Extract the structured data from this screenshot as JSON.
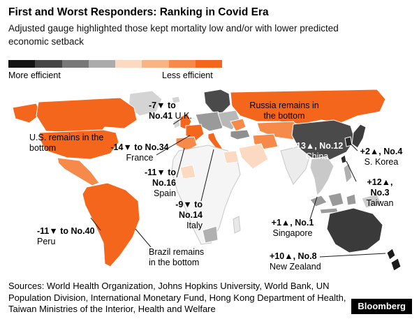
{
  "header": {
    "title": "First and Worst Responders: Ranking in Covid Era",
    "subtitle": "Adjusted gauge highlighted those kept mortality low and/or with lower predicted economic setback"
  },
  "legend": {
    "more_label": "More efficient",
    "less_label": "Less efficient",
    "colors": [
      "#141414",
      "#454545",
      "#787878",
      "#ababab",
      "#fcd9c1",
      "#f9b486",
      "#f68a4b",
      "#f3661c"
    ]
  },
  "annotations": {
    "uk": {
      "value": "-7▼ to No.41",
      "label": "U.K."
    },
    "russia": {
      "label": "Russia remains in the bottom"
    },
    "us": {
      "label": "U.S. remains in the bottom"
    },
    "france": {
      "value": "-14▼ to No.34",
      "label": "France"
    },
    "china": {
      "value": "+13▲, No.12",
      "label": "China"
    },
    "skorea": {
      "value": "+2▲, No.4",
      "label": "S. Korea"
    },
    "spain": {
      "value": "-11▼ to No.16",
      "label": "Spain"
    },
    "taiwan": {
      "value": "+12▲, No.3",
      "label": "Taiwan"
    },
    "italy": {
      "value": "-9▼ to No.14",
      "label": "Italy"
    },
    "singapore": {
      "value": "+1▲, No.1",
      "label": "Singapore"
    },
    "peru": {
      "value": "-11▼ to No.40",
      "label": "Peru"
    },
    "brazil": {
      "label": "Brazil remains in the bottom"
    },
    "nz": {
      "value": "+10▲, No.8",
      "label": "New Zealand"
    }
  },
  "sources": "Sources: World Health Organization, Johns Hopkins University, World Bank, UN Population Division, International Monetary Fund, Hong Kong Department of Health, Taiwan Ministries of the Interior, Health and Welfare",
  "branding": {
    "logo": "Bloomberg"
  },
  "chart_data": {
    "type": "heatmap",
    "subtype": "choropleth-world-map",
    "title": "First and Worst Responders: Ranking in Covid Era",
    "subtitle": "Adjusted gauge highlighted those kept mortality low and/or with lower predicted economic setback",
    "legend": {
      "left_label": "More efficient",
      "right_label": "Less efficient",
      "colors_dark_to_orange": [
        "#141414",
        "#454545",
        "#787878",
        "#ababab",
        "#fcd9c1",
        "#f9b486",
        "#f68a4b",
        "#f3661c"
      ]
    },
    "entries": [
      {
        "country": "U.K.",
        "rank_change": -7,
        "new_rank": 41,
        "direction": "down"
      },
      {
        "country": "France",
        "rank_change": -14,
        "new_rank": 34,
        "direction": "down"
      },
      {
        "country": "Spain",
        "rank_change": -11,
        "new_rank": 16,
        "direction": "down"
      },
      {
        "country": "Italy",
        "rank_change": -9,
        "new_rank": 14,
        "direction": "down"
      },
      {
        "country": "Peru",
        "rank_change": -11,
        "new_rank": 40,
        "direction": "down"
      },
      {
        "country": "China",
        "rank_change": 13,
        "new_rank": 12,
        "direction": "up"
      },
      {
        "country": "S. Korea",
        "rank_change": 2,
        "new_rank": 4,
        "direction": "up"
      },
      {
        "country": "Taiwan",
        "rank_change": 12,
        "new_rank": 3,
        "direction": "up"
      },
      {
        "country": "Singapore",
        "rank_change": 1,
        "new_rank": 1,
        "direction": "up"
      },
      {
        "country": "New Zealand",
        "rank_change": 10,
        "new_rank": 8,
        "direction": "up"
      },
      {
        "country": "U.S.",
        "note": "remains in the bottom"
      },
      {
        "country": "Russia",
        "note": "remains in the bottom"
      },
      {
        "country": "Brazil",
        "note": "remains in the bottom"
      }
    ]
  }
}
